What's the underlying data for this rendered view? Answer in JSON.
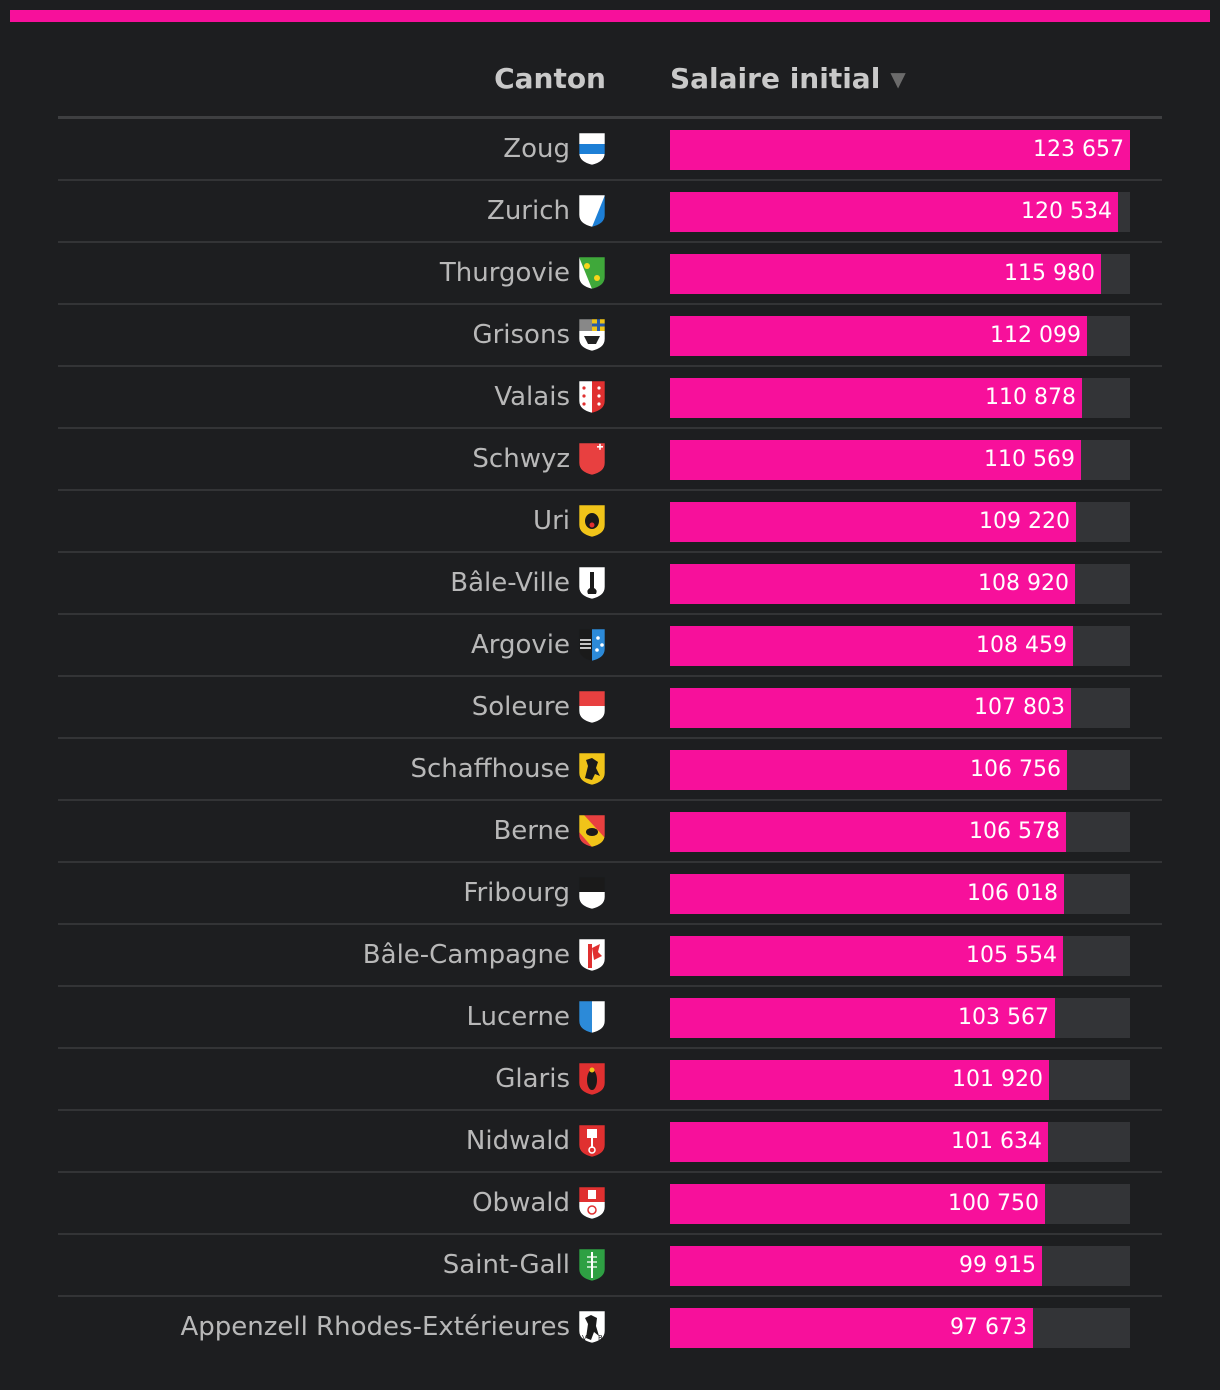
{
  "header": {
    "canton_label": "Canton",
    "salary_label": "Salaire initial",
    "sort_indicator": "▼"
  },
  "colors": {
    "accent": "#f7109b",
    "background": "#1d1e20",
    "track": "#333437"
  },
  "chart_data": {
    "type": "bar",
    "orientation": "horizontal",
    "xlim": [
      0,
      123657
    ],
    "categories": [
      "Zoug",
      "Zurich",
      "Thurgovie",
      "Grisons",
      "Valais",
      "Schwyz",
      "Uri",
      "Bâle-Ville",
      "Argovie",
      "Soleure",
      "Schaffhouse",
      "Berne",
      "Fribourg",
      "Bâle-Campagne",
      "Lucerne",
      "Glaris",
      "Nidwald",
      "Obwald",
      "Saint-Gall",
      "Appenzell Rhodes-Extérieures"
    ],
    "values": [
      123657,
      120534,
      115980,
      112099,
      110878,
      110569,
      109220,
      108920,
      108459,
      107803,
      106756,
      106578,
      106018,
      105554,
      103567,
      101920,
      101634,
      100750,
      99915,
      97673
    ],
    "labels": [
      "123 657",
      "120 534",
      "115 980",
      "112 099",
      "110 878",
      "110 569",
      "109 220",
      "108 920",
      "108 459",
      "107 803",
      "106 756",
      "106 578",
      "106 018",
      "105 554",
      "103 567",
      "101 920",
      "101 634",
      "100 750",
      "99 915",
      "97 673"
    ],
    "flag_icons": [
      "zug-flag-icon",
      "zurich-flag-icon",
      "thurgau-flag-icon",
      "graubunden-flag-icon",
      "valais-flag-icon",
      "schwyz-flag-icon",
      "uri-flag-icon",
      "basel-city-flag-icon",
      "aargau-flag-icon",
      "solothurn-flag-icon",
      "schaffhausen-flag-icon",
      "bern-flag-icon",
      "fribourg-flag-icon",
      "basel-country-flag-icon",
      "lucerne-flag-icon",
      "glarus-flag-icon",
      "nidwalden-flag-icon",
      "obwalden-flag-icon",
      "st-gallen-flag-icon",
      "appenzell-ar-flag-icon"
    ]
  }
}
